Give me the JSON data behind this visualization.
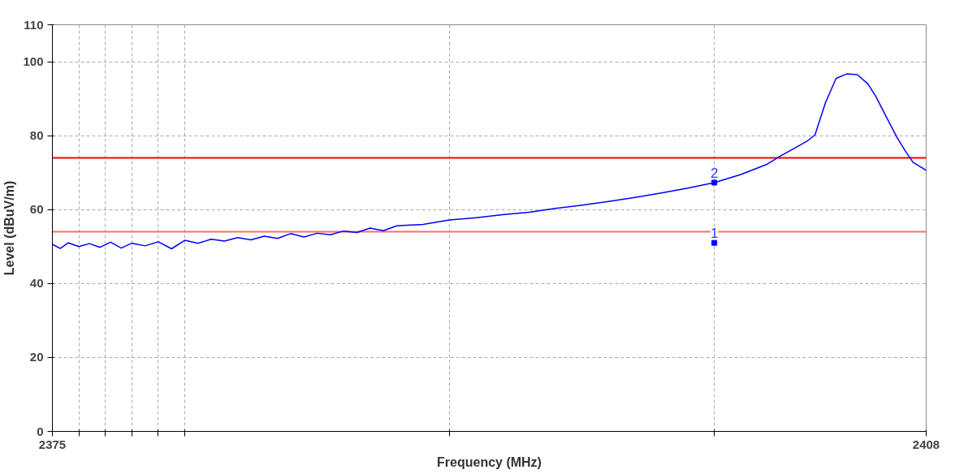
{
  "chart_data": {
    "type": "line",
    "ylabel": "Level (dBuV/m)",
    "xlabel": "Frequency (MHz)",
    "xlim": [
      2375,
      2408
    ],
    "ylim": [
      0,
      110
    ],
    "xticks": [
      2375,
      {
        "value": 2376,
        "label": null
      },
      {
        "value": 2377,
        "label": null
      },
      {
        "value": 2378,
        "label": null
      },
      {
        "value": 2379,
        "label": null
      },
      {
        "value": 2380,
        "label": null
      },
      {
        "value": 2390,
        "label": null
      },
      {
        "value": 2400,
        "label": null
      },
      2408
    ],
    "yticks": [
      0,
      20,
      40,
      60,
      80,
      100,
      110
    ],
    "grid": true,
    "marker": "none",
    "line_style": "solid",
    "series": [
      {
        "color": "#0000ff",
        "x": [
          2375,
          2375.3,
          2375.6,
          2376,
          2376.4,
          2376.8,
          2377.2,
          2377.6,
          2378,
          2378.5,
          2379,
          2379.5,
          2380,
          2380.5,
          2381,
          2381.5,
          2382,
          2382.5,
          2383,
          2383.5,
          2384,
          2384.5,
          2385,
          2385.5,
          2386,
          2386.5,
          2387,
          2387.5,
          2388,
          2389,
          2390,
          2391,
          2392,
          2393,
          2394,
          2395,
          2396,
          2397,
          2398,
          2399,
          2400,
          2401,
          2402,
          2402.5,
          2403,
          2403.5,
          2403.8,
          2404.2,
          2404.6,
          2405,
          2405.4,
          2405.8,
          2406.1,
          2406.5,
          2406.9,
          2407.2,
          2407.5,
          2408
        ],
        "values": [
          50.6,
          49.5,
          51,
          50,
          50.8,
          49.8,
          51.2,
          49.6,
          50.9,
          50.2,
          51.3,
          49.4,
          51.7,
          50.9,
          52,
          51.5,
          52.4,
          51.8,
          52.8,
          52.2,
          53.5,
          52.6,
          53.6,
          53.2,
          54.2,
          53.8,
          55,
          54.3,
          55.6,
          56,
          57.2,
          57.8,
          58.6,
          59.3,
          60.3,
          61.2,
          62.2,
          63.3,
          64.5,
          65.8,
          67.3,
          69.5,
          72.3,
          74.5,
          76.5,
          78.5,
          80.2,
          89,
          95.5,
          96.7,
          96.5,
          94,
          90.6,
          85,
          79.5,
          76,
          72.8,
          70.6
        ]
      },
      {
        "type": "scatter",
        "color": "#0000ff",
        "marker": "square",
        "x": [
          2400,
          2400
        ],
        "values": [
          51,
          67.3
        ]
      }
    ],
    "ref_lines": [
      {
        "axis": "y",
        "value": 74,
        "color": "#ff0000"
      },
      {
        "axis": "y",
        "value": 54,
        "color": "#ff6a6a"
      }
    ],
    "annotations": [
      {
        "text": "1",
        "x": 2400,
        "y": 51
      },
      {
        "text": "2",
        "x": 2400,
        "y": 67.3
      }
    ]
  }
}
